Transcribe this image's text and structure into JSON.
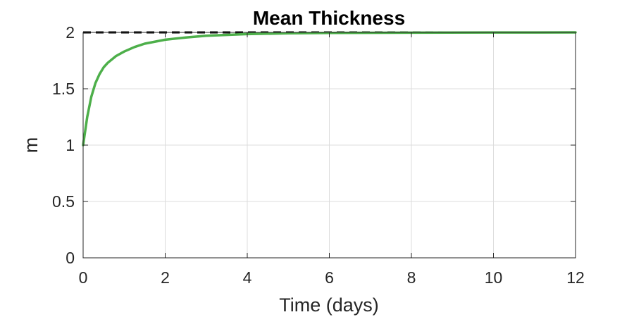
{
  "chart_data": {
    "type": "line",
    "title": "Mean Thickness",
    "xlabel": "Time (days)",
    "ylabel": "m",
    "xlim": [
      0,
      12
    ],
    "ylim": [
      0,
      2
    ],
    "xticks": [
      "0",
      "2",
      "4",
      "6",
      "8",
      "10",
      "12"
    ],
    "yticks": [
      "0",
      "0.5",
      "1",
      "1.5",
      "2"
    ],
    "grid": true,
    "series": [
      {
        "style": "solid",
        "color": "#4daf4a",
        "x": [
          0,
          0.1,
          0.2,
          0.3,
          0.4,
          0.5,
          0.6,
          0.8,
          1.0,
          1.25,
          1.5,
          2.0,
          2.5,
          3.0,
          4.0,
          5.0,
          6.0,
          8.0,
          10.0,
          12.0
        ],
        "y": [
          1.0,
          1.25,
          1.43,
          1.55,
          1.63,
          1.69,
          1.73,
          1.79,
          1.83,
          1.87,
          1.9,
          1.935,
          1.955,
          1.97,
          1.985,
          1.992,
          1.995,
          1.998,
          1.999,
          2.0
        ]
      },
      {
        "style": "dashed",
        "color": "#000000",
        "x": [
          0,
          12
        ],
        "y": [
          2.0,
          2.0
        ]
      }
    ]
  }
}
